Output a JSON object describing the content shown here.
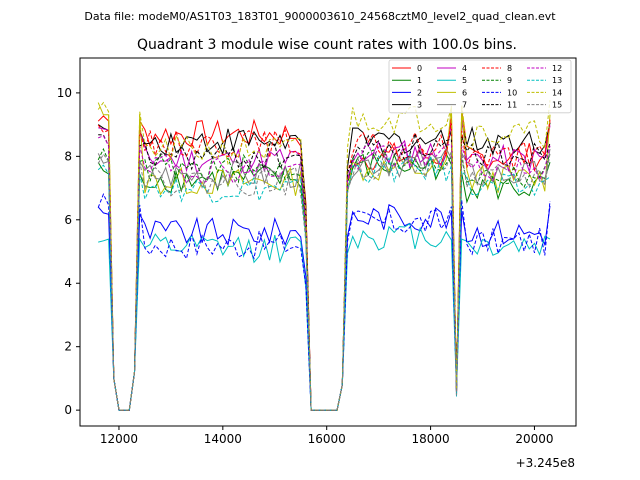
{
  "suptitle": "Data file: modeM0/AS1T03_183T01_9000003610_24568cztM0_level2_quad_clean.evt",
  "chart_data": {
    "type": "line",
    "title": "Quadrant 3 module wise count rates with 100.0s bins.",
    "xlabel": "",
    "ylabel": "",
    "x_offset_label": "+3.245e8",
    "xlim": [
      11250,
      20800
    ],
    "ylim": [
      -0.5,
      11.1
    ],
    "xticks": [
      12000,
      14000,
      16000,
      18000,
      20000
    ],
    "xtick_labels": [
      "12000",
      "14000",
      "16000",
      "18000",
      "20000"
    ],
    "yticks": [
      0,
      2,
      4,
      6,
      8,
      10
    ],
    "ytick_labels": [
      "0",
      "2",
      "4",
      "6",
      "8",
      "10"
    ],
    "grid": false,
    "legend_position": "top-right",
    "legend_columns": 4,
    "segments": [
      {
        "x_start": 11600,
        "x_end": 11700,
        "role": "edge"
      },
      {
        "x_start": 11800,
        "x_end": 11900,
        "role": "ramp-down"
      },
      {
        "x_start": 12000,
        "x_end": 12200,
        "role": "gap"
      },
      {
        "x_start": 12300,
        "x_end": 12300,
        "role": "ramp-up"
      },
      {
        "x_start": 12400,
        "x_end": 15500,
        "role": "plateau"
      },
      {
        "x_start": 15600,
        "x_end": 15600,
        "role": "ramp-down"
      },
      {
        "x_start": 15700,
        "x_end": 16200,
        "role": "gap"
      },
      {
        "x_start": 16300,
        "x_end": 16400,
        "role": "ramp-up"
      },
      {
        "x_start": 16500,
        "x_end": 18300,
        "role": "plateau"
      },
      {
        "x_start": 18400,
        "x_end": 18400,
        "role": "peak"
      },
      {
        "x_start": 18500,
        "x_end": 18500,
        "role": "dip"
      },
      {
        "x_start": 18600,
        "x_end": 18600,
        "role": "peak"
      },
      {
        "x_start": 18700,
        "x_end": 20200,
        "role": "plateau"
      },
      {
        "x_start": 20300,
        "x_end": 20300,
        "role": "edge"
      }
    ],
    "series": [
      {
        "name": "0",
        "color": "#ff0000",
        "dash": "solid",
        "level_a": 8.7,
        "level_b": 8.0,
        "level_c": 8.0,
        "edge": 9.3
      },
      {
        "name": "1",
        "color": "#008000",
        "dash": "solid",
        "level_a": 7.3,
        "level_b": 7.7,
        "level_c": 7.0,
        "edge": 7.6
      },
      {
        "name": "2",
        "color": "#0000ff",
        "dash": "solid",
        "level_a": 5.6,
        "level_b": 6.1,
        "level_c": 5.6,
        "edge": 6.3
      },
      {
        "name": "3",
        "color": "#000000",
        "dash": "solid",
        "level_a": 8.5,
        "level_b": 8.5,
        "level_c": 8.5,
        "edge": 9.0
      },
      {
        "name": "4",
        "color": "#c000c0",
        "dash": "solid",
        "level_a": 7.9,
        "level_b": 8.1,
        "level_c": 7.9,
        "edge": 9.0
      },
      {
        "name": "5",
        "color": "#00bfbf",
        "dash": "solid",
        "level_a": 5.1,
        "level_b": 5.5,
        "level_c": 5.2,
        "edge": 5.5
      },
      {
        "name": "6",
        "color": "#bfbf00",
        "dash": "solid",
        "level_a": 7.2,
        "level_b": 7.6,
        "level_c": 7.3,
        "edge": 9.5
      },
      {
        "name": "7",
        "color": "#808080",
        "dash": "solid",
        "level_a": 7.4,
        "level_b": 7.8,
        "level_c": 7.4,
        "edge": 8.0
      },
      {
        "name": "8",
        "color": "#ff0000",
        "dash": "dashed",
        "level_a": 8.4,
        "level_b": 8.3,
        "level_c": 8.0,
        "edge": 9.0
      },
      {
        "name": "9",
        "color": "#008000",
        "dash": "dashed",
        "level_a": 7.6,
        "level_b": 7.9,
        "level_c": 7.4,
        "edge": 8.0
      },
      {
        "name": "10",
        "color": "#0000ff",
        "dash": "dashed",
        "level_a": 5.2,
        "level_b": 5.9,
        "level_c": 5.3,
        "edge": 6.6
      },
      {
        "name": "11",
        "color": "#000000",
        "dash": "dashed",
        "level_a": 8.0,
        "level_b": 8.3,
        "level_c": 8.1,
        "edge": 8.5
      },
      {
        "name": "12",
        "color": "#c000c0",
        "dash": "dashed",
        "level_a": 7.6,
        "level_b": 8.0,
        "level_c": 7.6,
        "edge": 8.5
      },
      {
        "name": "13",
        "color": "#00bfbf",
        "dash": "dashed",
        "level_a": 7.0,
        "level_b": 7.6,
        "level_c": 7.0,
        "edge": 7.6
      },
      {
        "name": "14",
        "color": "#bfbf00",
        "dash": "dashed",
        "level_a": 8.2,
        "level_b": 9.2,
        "level_c": 8.7,
        "edge": 9.6
      },
      {
        "name": "15",
        "color": "#808080",
        "dash": "dashed",
        "level_a": 7.2,
        "level_b": 7.7,
        "level_c": 7.3,
        "edge": 8.0
      }
    ]
  }
}
